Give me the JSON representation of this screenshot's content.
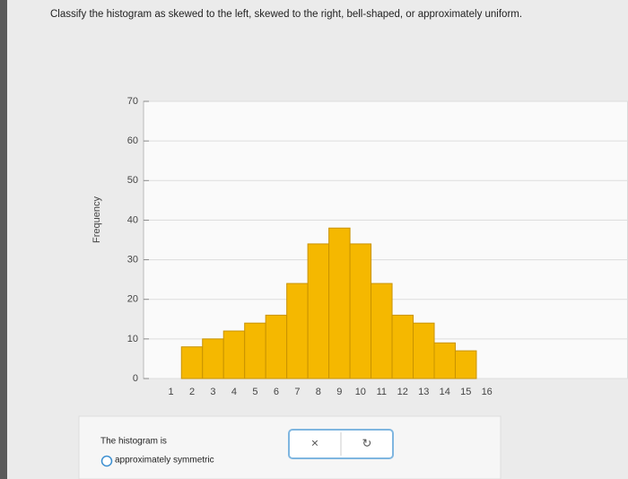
{
  "question": "Classify the histogram as skewed to the left, skewed to the right, bell-shaped, or approximately uniform.",
  "chart_data": {
    "type": "histogram",
    "ylabel": "Frequency",
    "bins": [
      1.5,
      2.5,
      3.5,
      4.5,
      5.5,
      6.5,
      7.5,
      8.5,
      9.5,
      10.5,
      11.5,
      12.5,
      13.5,
      14.5,
      15.5
    ],
    "values": [
      8,
      10,
      12,
      14,
      16,
      24,
      34,
      38,
      34,
      24,
      16,
      14,
      9,
      7
    ],
    "color": "#f5b800",
    "xlim": [
      -0.3,
      22.7
    ],
    "xticks": [
      1,
      2,
      3,
      4,
      5,
      6,
      7,
      8,
      9,
      10,
      11,
      12,
      13,
      14,
      15,
      16
    ],
    "ylim": [
      0,
      70
    ],
    "yticks": [
      0,
      10,
      20,
      30,
      40,
      50,
      60,
      70
    ],
    "grid": true
  },
  "answer": {
    "prompt": "The histogram is",
    "choice": "approximately symmetric"
  }
}
